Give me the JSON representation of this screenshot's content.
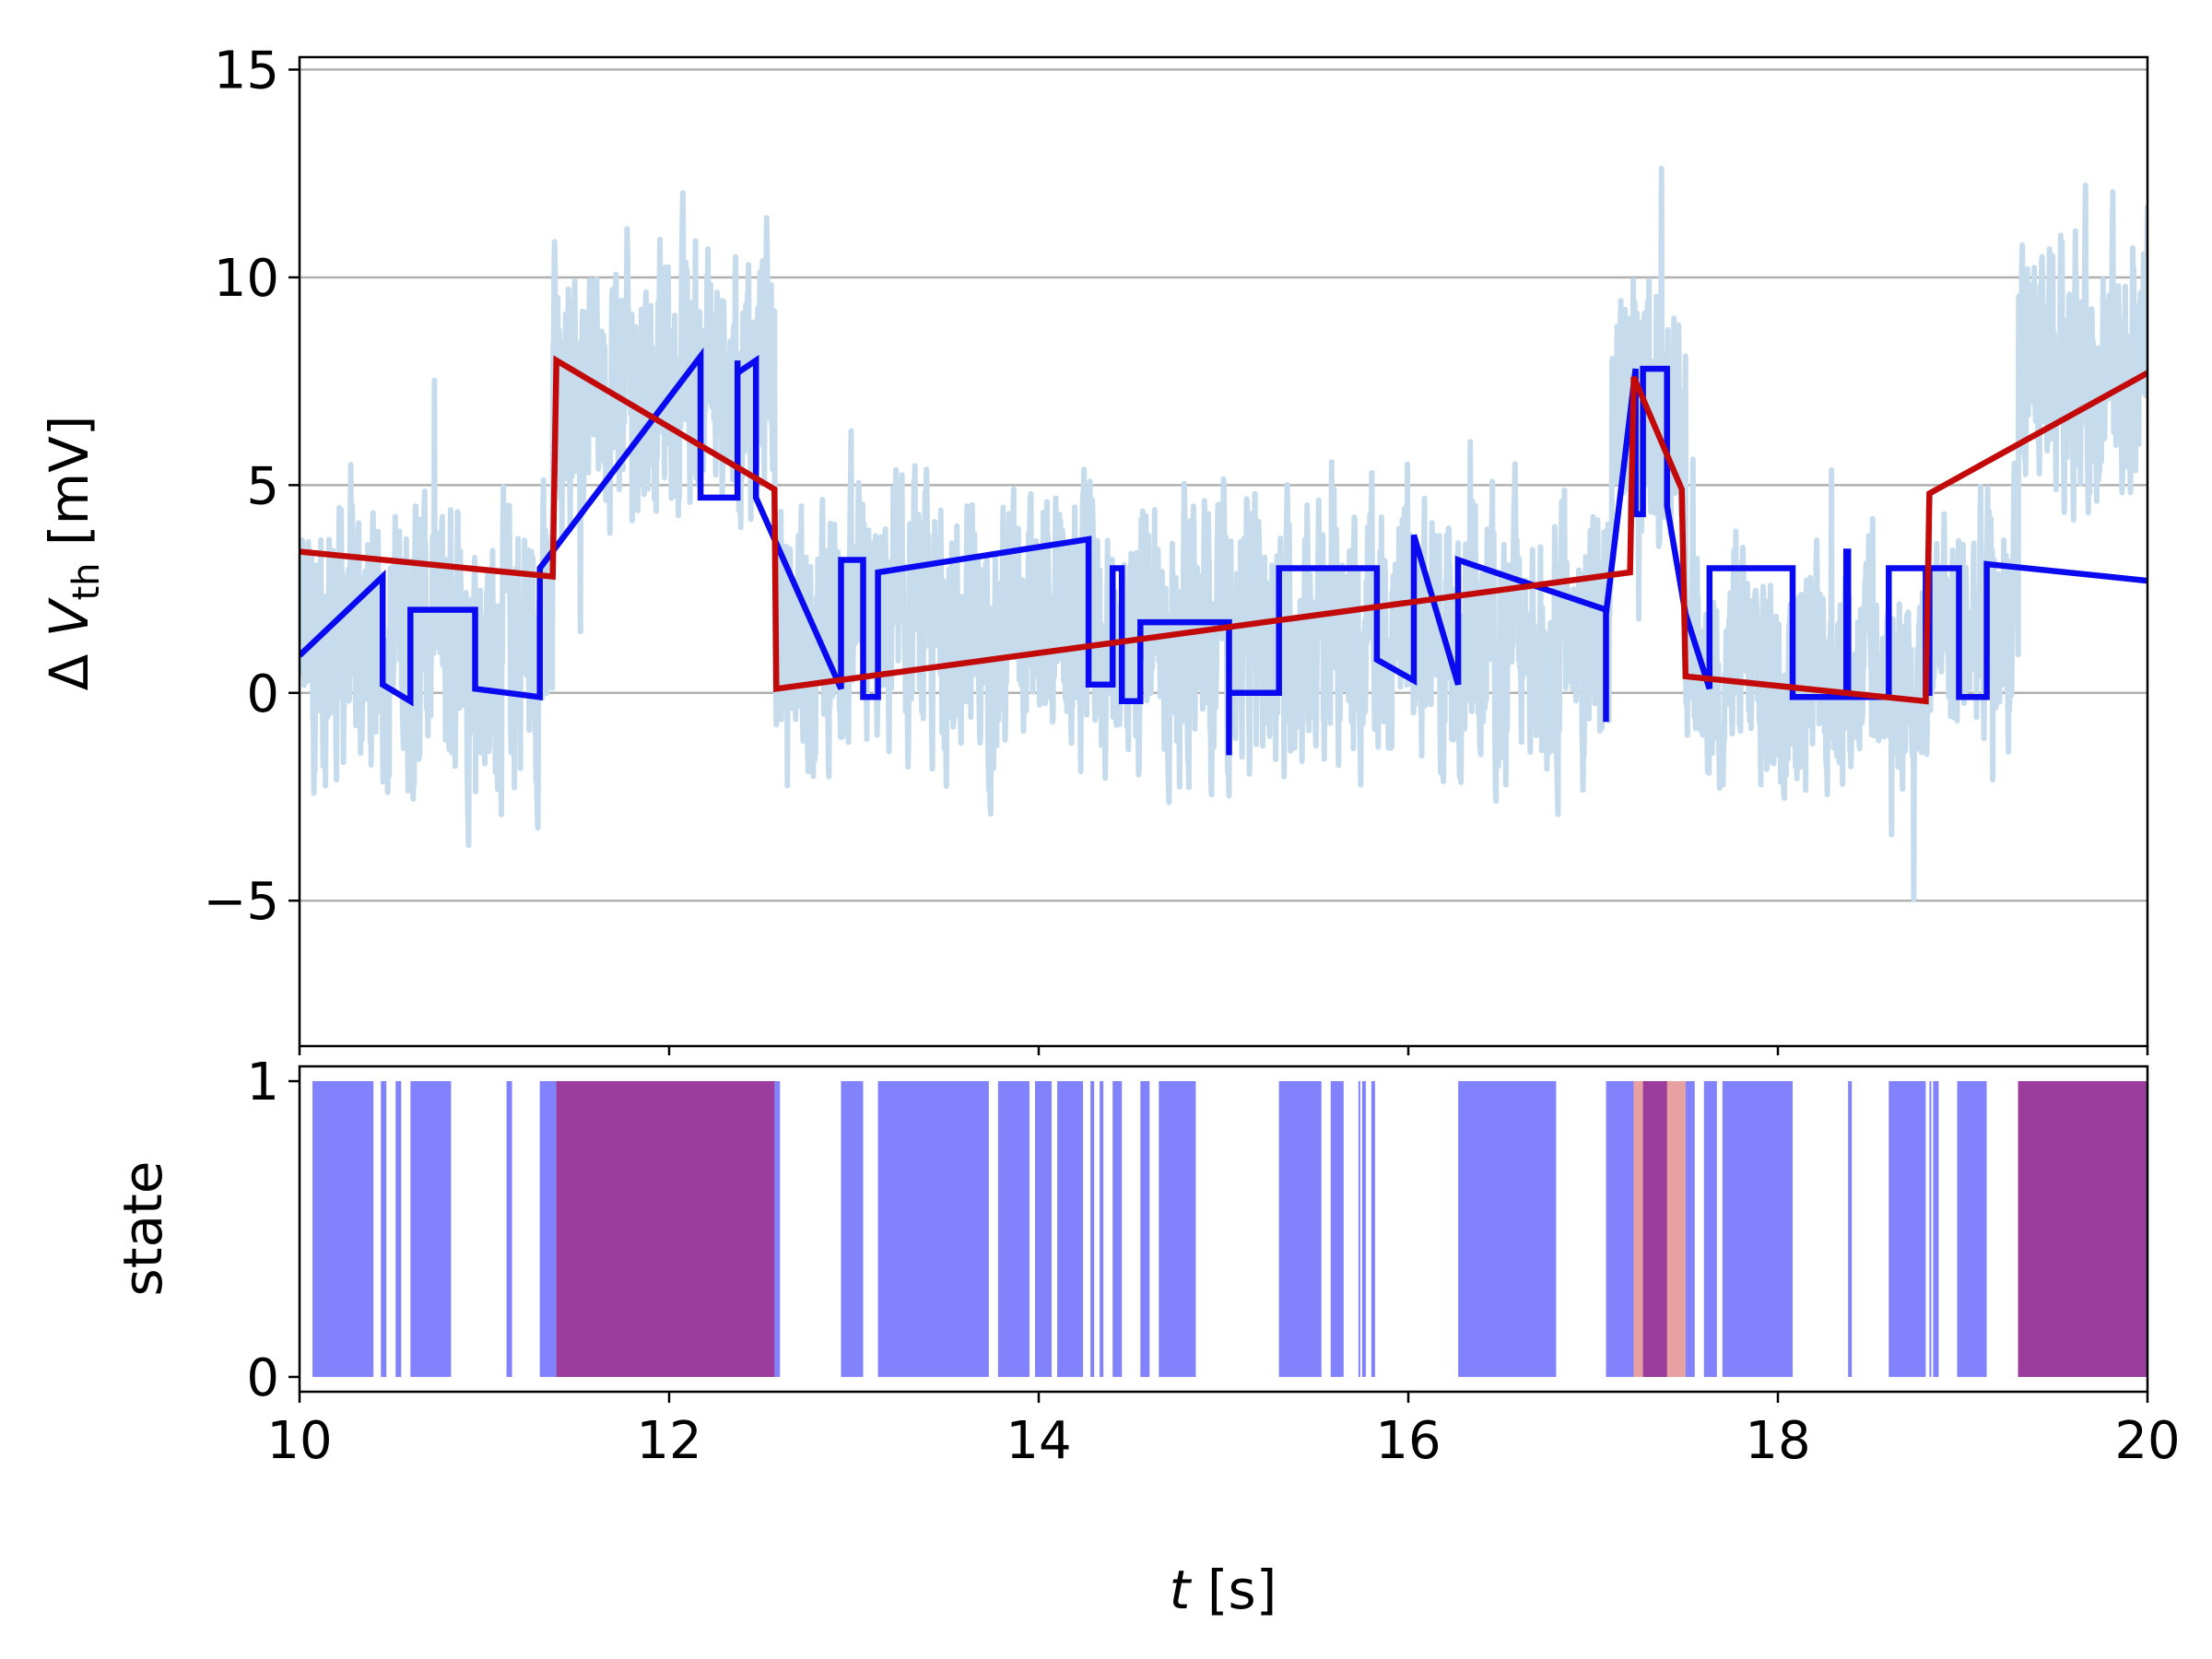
{
  "chart_data": [
    {
      "type": "line",
      "ylabel_prefix": "Δ ",
      "ylabel_var": "V",
      "ylabel_sub": "th",
      "ylabel_unit": " [mV]",
      "xlim": [
        10,
        20
      ],
      "ylim": [
        -8.5,
        15.3
      ],
      "yticks": [
        -5,
        0,
        5,
        10,
        15
      ],
      "ytick_labels": [
        "−5",
        "0",
        "5",
        "10",
        "15"
      ],
      "grid": "horizontal",
      "colors": {
        "noisy": "#c6dced",
        "blue": "#0a0af0",
        "red": "#c20a0a"
      },
      "noisy_series": {
        "segments": [
          {
            "x": [
              10.0,
              11.37
            ],
            "mean": 1.3,
            "spread": 2.6
          },
          {
            "x": [
              11.37,
              12.57
            ],
            "mean": 7.6,
            "spread": 2.4
          },
          {
            "x": [
              12.57,
              17.1
            ],
            "mean": 1.4,
            "spread": 2.3
          },
          {
            "x": [
              17.1,
              17.5
            ],
            "mean": 6.8,
            "spread": 2.2
          },
          {
            "x": [
              17.5,
              18.8
            ],
            "mean": 0.5,
            "spread": 2.0
          },
          {
            "x": [
              18.8,
              19.3
            ],
            "mean": 1.6,
            "spread": 2.2
          },
          {
            "x": [
              19.3,
              20.0
            ],
            "mean": 8.1,
            "spread": 2.4
          }
        ]
      },
      "series": [
        {
          "color": "#0a0af0",
          "x": [
            10.0,
            10.45,
            10.45,
            10.6,
            10.6,
            10.95,
            10.95,
            11.3,
            11.3,
            12.17,
            12.17,
            12.37,
            12.37,
            12.37,
            12.47,
            12.47,
            12.93,
            12.93,
            13.05,
            13.05,
            13.13,
            13.13,
            14.27,
            14.27,
            14.4,
            14.4,
            14.45,
            14.45,
            14.55,
            14.55,
            15.03,
            15.03,
            15.03,
            15.3,
            15.3,
            15.83,
            15.83,
            16.03,
            16.03,
            16.27,
            16.27,
            17.07,
            17.07,
            17.07,
            17.23,
            17.23,
            17.27,
            17.27,
            17.4,
            17.4,
            17.5,
            17.63,
            17.63,
            17.67,
            17.67,
            18.08,
            18.08,
            18.37,
            18.37,
            18.38,
            18.38,
            18.6,
            18.6,
            18.8,
            18.8,
            18.82,
            18.82,
            18.98,
            18.98,
            19.13,
            19.13,
            20.0
          ],
          "y": [
            0.9,
            2.8,
            0.2,
            -0.2,
            2.0,
            2.0,
            0.1,
            -0.1,
            3.0,
            8.1,
            4.7,
            4.7,
            8.0,
            7.7,
            8.0,
            4.7,
            0.1,
            3.2,
            3.2,
            -0.1,
            -0.1,
            2.9,
            3.7,
            0.2,
            0.2,
            3.0,
            3.0,
            -0.2,
            -0.2,
            1.7,
            1.7,
            -1.5,
            0.0,
            0.0,
            3.0,
            3.0,
            0.8,
            0.3,
            3.8,
            0.2,
            3.2,
            2.0,
            -0.7,
            1.9,
            7.8,
            4.3,
            4.3,
            7.8,
            7.8,
            4.5,
            1.9,
            0.1,
            3.0,
            3.0,
            3.0,
            3.0,
            -0.1,
            -0.1,
            3.4,
            3.4,
            -0.1,
            -0.1,
            3.0,
            3.0,
            0.0,
            0.0,
            3.0,
            3.0,
            -0.1,
            -0.1,
            3.1,
            2.7
          ]
        },
        {
          "color": "#c20a0a",
          "x": [
            10.0,
            11.37,
            11.39,
            12.57,
            12.58,
            17.2,
            17.22,
            17.48,
            17.5,
            18.8,
            18.82,
            20.0
          ],
          "y": [
            3.4,
            2.8,
            8.0,
            4.9,
            0.1,
            2.9,
            7.6,
            4.9,
            0.4,
            -0.2,
            4.8,
            7.7
          ]
        }
      ]
    },
    {
      "type": "bar",
      "ylabel": "state",
      "xlabel_var": "t",
      "xlabel_unit": " [s]",
      "xlim": [
        10,
        20
      ],
      "ylim": [
        -0.05,
        1.05
      ],
      "yticks": [
        0,
        1
      ],
      "ytick_labels": [
        "0",
        "1"
      ],
      "xticks": [
        10,
        12,
        14,
        16,
        18,
        20
      ],
      "xtick_labels": [
        "10",
        "12",
        "14",
        "16",
        "18",
        "20"
      ],
      "colors": {
        "blue_state": "#8282fc",
        "red_state": "#e08080",
        "overlap": "#9c3c9c"
      },
      "blue_intervals": [
        [
          10.07,
          10.4
        ],
        [
          10.44,
          10.47
        ],
        [
          10.52,
          10.55
        ],
        [
          10.6,
          10.82
        ],
        [
          11.12,
          11.15
        ],
        [
          11.3,
          12.6
        ],
        [
          12.93,
          13.05
        ],
        [
          13.13,
          13.73
        ],
        [
          13.78,
          13.95
        ],
        [
          13.98,
          14.07
        ],
        [
          14.1,
          14.24
        ],
        [
          14.28,
          14.3
        ],
        [
          14.33,
          14.35
        ],
        [
          14.4,
          14.45
        ],
        [
          14.55,
          14.6
        ],
        [
          14.65,
          14.85
        ],
        [
          15.3,
          15.53
        ],
        [
          15.58,
          15.65
        ],
        [
          15.73,
          15.74
        ],
        [
          15.75,
          15.77
        ],
        [
          15.8,
          15.82
        ],
        [
          16.27,
          16.8
        ],
        [
          17.07,
          17.22
        ],
        [
          17.27,
          17.4
        ],
        [
          17.5,
          17.55
        ],
        [
          17.6,
          17.67
        ],
        [
          17.7,
          18.08
        ],
        [
          18.38,
          18.4
        ],
        [
          18.6,
          18.8
        ],
        [
          18.82,
          18.83
        ],
        [
          18.84,
          18.87
        ],
        [
          18.97,
          19.13
        ],
        [
          19.3,
          20.0
        ]
      ],
      "red_intervals": [
        [
          11.39,
          12.57
        ],
        [
          17.22,
          17.5
        ],
        [
          19.3,
          20.0
        ]
      ]
    }
  ]
}
